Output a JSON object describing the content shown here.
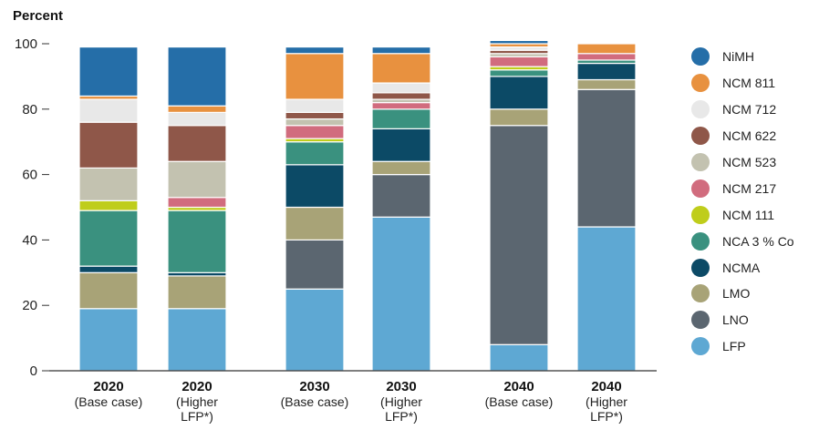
{
  "chart_data": {
    "type": "bar",
    "stacked": true,
    "ylabel": "Percent",
    "ylim": [
      0,
      100
    ],
    "yticks": [
      0,
      20,
      40,
      60,
      80,
      100
    ],
    "grid": false,
    "legend_position": "right",
    "categories": [
      {
        "year": "2020",
        "sub": [
          "(Base case)"
        ]
      },
      {
        "year": "2020",
        "sub": [
          "(Higher",
          "LFP*)"
        ]
      },
      {
        "year": "2030",
        "sub": [
          "(Base case)"
        ]
      },
      {
        "year": "2030",
        "sub": [
          "(Higher",
          "LFP*)"
        ]
      },
      {
        "year": "2040",
        "sub": [
          "(Base case)"
        ]
      },
      {
        "year": "2040",
        "sub": [
          "(Higher",
          "LFP*)"
        ]
      }
    ],
    "series": [
      {
        "name": "LFP",
        "color": "#5ea8d3",
        "values": [
          19,
          19,
          25,
          47,
          8,
          44
        ]
      },
      {
        "name": "LNO",
        "color": "#5b6670",
        "values": [
          0,
          0,
          15,
          13,
          67,
          42
        ]
      },
      {
        "name": "LMO",
        "color": "#a8a377",
        "values": [
          11,
          10,
          10,
          4,
          5,
          3
        ]
      },
      {
        "name": "NCMA",
        "color": "#0c4a66",
        "values": [
          2,
          1,
          13,
          10,
          10,
          5
        ]
      },
      {
        "name": "NCA 3 % Co",
        "color": "#3a917f",
        "values": [
          17,
          19,
          7,
          6,
          2,
          1
        ]
      },
      {
        "name": "NCM 111",
        "color": "#bfcd1b",
        "values": [
          3,
          1,
          1,
          0,
          1,
          0
        ]
      },
      {
        "name": "NCM 217",
        "color": "#d16c7e",
        "values": [
          0,
          3,
          4,
          2,
          3,
          2
        ]
      },
      {
        "name": "NCM 523",
        "color": "#c3c2b0",
        "values": [
          10,
          11,
          2,
          1,
          1,
          0
        ]
      },
      {
        "name": "NCM 622",
        "color": "#8f5749",
        "values": [
          14,
          11,
          2,
          2,
          1,
          0
        ]
      },
      {
        "name": "NCM 712",
        "color": "#e8e8e8",
        "values": [
          7,
          4,
          4,
          3,
          1,
          0
        ]
      },
      {
        "name": "NCM 811",
        "color": "#e8913f",
        "values": [
          1,
          2,
          14,
          9,
          1,
          3
        ]
      },
      {
        "name": "NiMH",
        "color": "#256ea8",
        "values": [
          15,
          18,
          2,
          2,
          1,
          0
        ]
      }
    ]
  }
}
